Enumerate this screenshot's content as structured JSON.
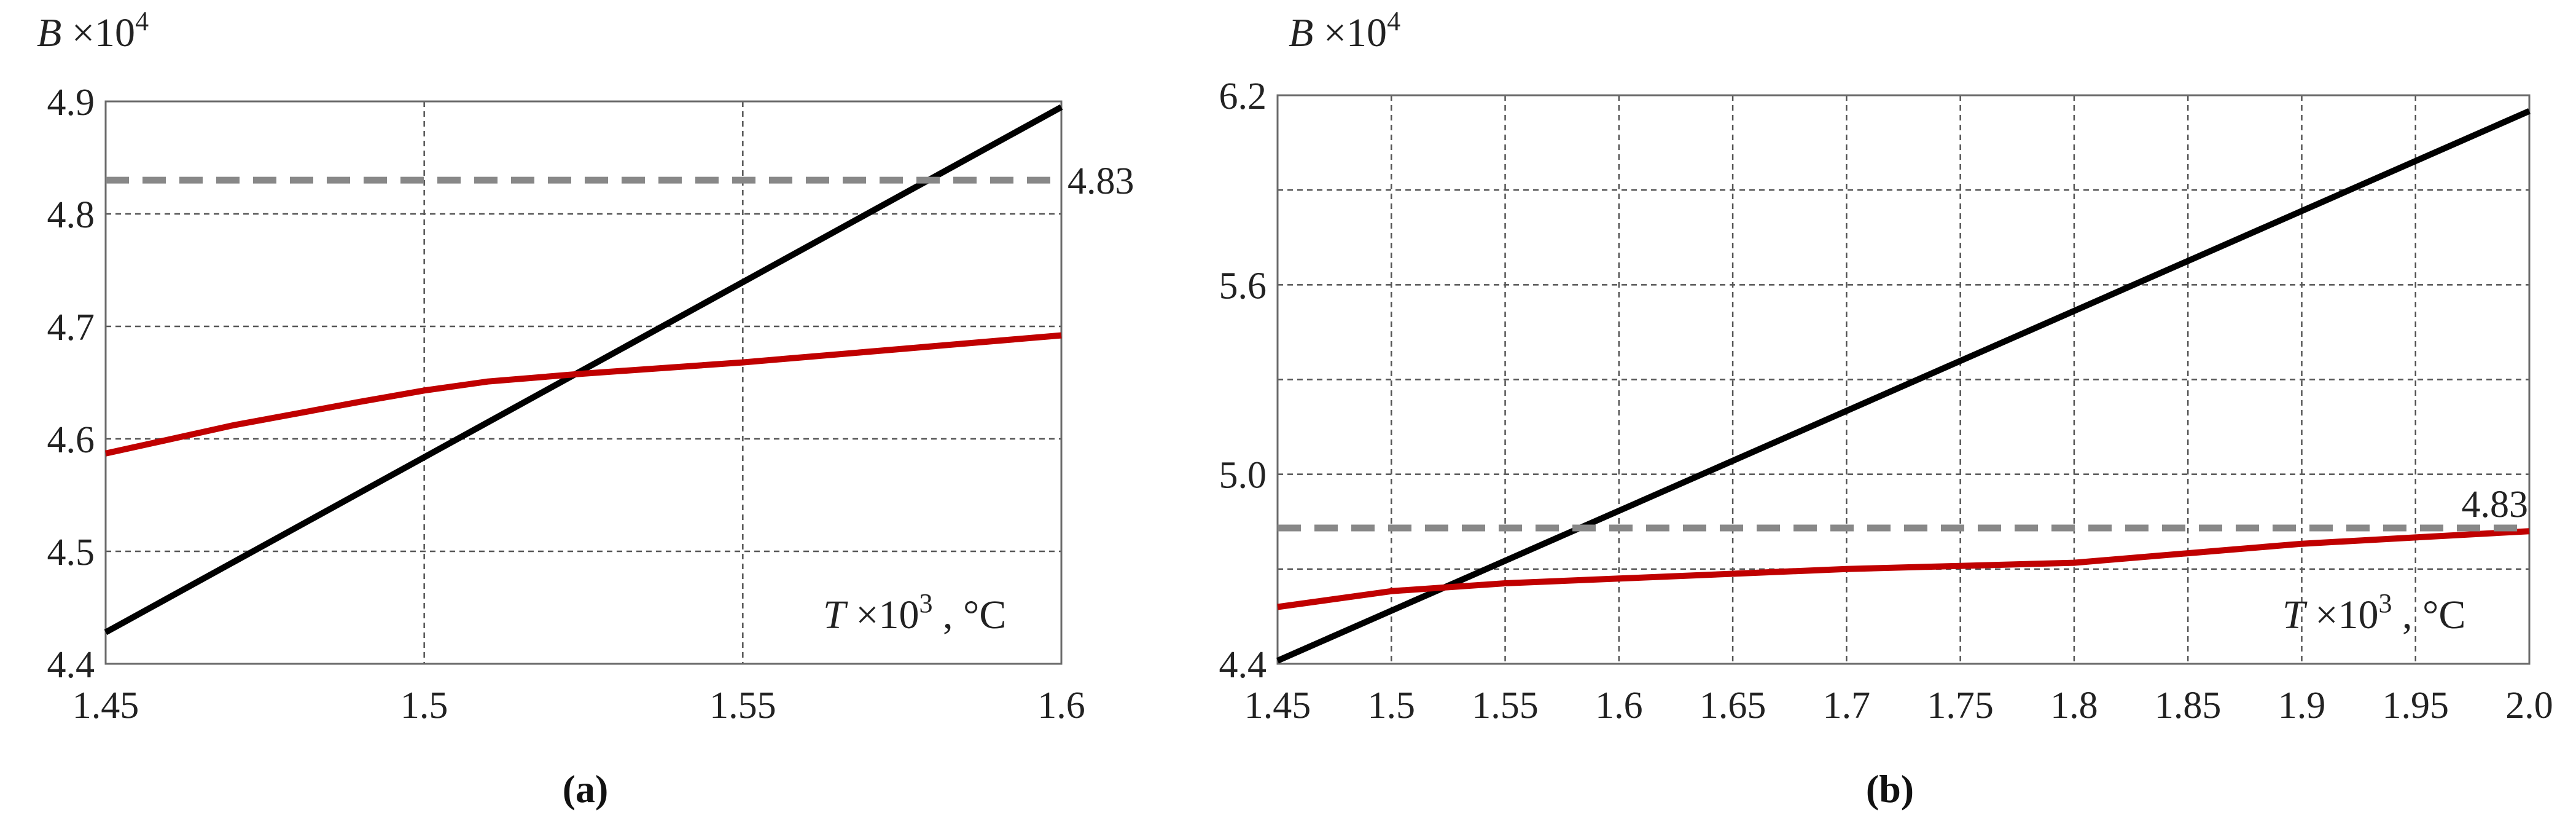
{
  "chart_data": [
    {
      "type": "line",
      "panel_label": "(a)",
      "ylabel_var": "B",
      "ylabel_exp": "×10",
      "ylabel_pow": "4",
      "xlabel_var": "T",
      "xlabel_exp": "×10",
      "xlabel_pow": "3",
      "xlabel_unit": ", °C",
      "xlim": [
        1.45,
        1.6
      ],
      "ylim": [
        4.4,
        4.9
      ],
      "x_ticks": [
        "1.45",
        "1.5",
        "1.55",
        "1.6"
      ],
      "y_ticks": [
        "4.4",
        "4.5",
        "4.6",
        "4.7",
        "4.8",
        "4.9"
      ],
      "x_grid": [
        1.45,
        1.5,
        1.55,
        1.6
      ],
      "y_grid": [
        4.4,
        4.5,
        4.6,
        4.7,
        4.8,
        4.9
      ],
      "threshold_label": "4.83",
      "series": [
        {
          "color": "#000000",
          "style": "solid",
          "x": [
            1.45,
            1.6
          ],
          "y": [
            4.428,
            4.895
          ]
        },
        {
          "color": "#c00000",
          "style": "solid",
          "x": [
            1.45,
            1.47,
            1.49,
            1.5,
            1.51,
            1.525,
            1.55,
            1.575,
            1.6
          ],
          "y": [
            4.587,
            4.612,
            4.633,
            4.643,
            4.651,
            4.658,
            4.668,
            4.68,
            4.692
          ]
        },
        {
          "color": "#888888",
          "style": "dashed",
          "x": [
            1.45,
            1.6
          ],
          "y": [
            4.83,
            4.83
          ]
        }
      ]
    },
    {
      "type": "line",
      "panel_label": "(b)",
      "ylabel_var": "B",
      "ylabel_exp": "×10",
      "ylabel_pow": "4",
      "xlabel_var": "T",
      "xlabel_exp": "×10",
      "xlabel_pow": "3",
      "xlabel_unit": ", °C",
      "xlim": [
        1.45,
        2.0
      ],
      "ylim": [
        4.4,
        6.2
      ],
      "x_ticks": [
        "1.45",
        "1.5",
        "1.55",
        "1.6",
        "1.65",
        "1.7",
        "1.75",
        "1.8",
        "1.85",
        "1.9",
        "1.95",
        "2.0"
      ],
      "y_ticks": [
        "4.4",
        "5.0",
        "5.6",
        "6.2"
      ],
      "x_grid": [
        1.45,
        1.5,
        1.55,
        1.6,
        1.65,
        1.7,
        1.75,
        1.8,
        1.85,
        1.9,
        1.95,
        2.0
      ],
      "y_grid": [
        4.4,
        4.7,
        5.0,
        5.3,
        5.6,
        5.9,
        6.2
      ],
      "threshold_label": "4.83",
      "series": [
        {
          "color": "#000000",
          "style": "solid",
          "x": [
            1.45,
            2.0
          ],
          "y": [
            4.41,
            6.15
          ]
        },
        {
          "color": "#c00000",
          "style": "solid",
          "x": [
            1.45,
            1.5,
            1.55,
            1.6,
            1.65,
            1.7,
            1.75,
            1.8,
            1.85,
            1.9,
            1.95,
            2.0
          ],
          "y": [
            4.58,
            4.63,
            4.655,
            4.67,
            4.685,
            4.7,
            4.71,
            4.72,
            4.75,
            4.78,
            4.8,
            4.82
          ]
        },
        {
          "color": "#888888",
          "style": "dashed",
          "x": [
            1.45,
            2.0
          ],
          "y": [
            4.83,
            4.83
          ]
        }
      ]
    }
  ]
}
